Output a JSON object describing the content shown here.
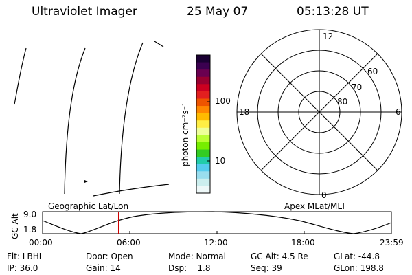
{
  "header": {
    "instrument": "Ultraviolet Imager",
    "date": "25 May 07",
    "time": "05:13:28 UT"
  },
  "colorbar": {
    "unit_label": "photon cm⁻²s⁻¹",
    "tick_100": "100",
    "tick_10": "10",
    "colors": [
      "#1a0033",
      "#3b0050",
      "#6a0050",
      "#990030",
      "#cc0020",
      "#e21f1f",
      "#ee5500",
      "#ff8800",
      "#ffbb00",
      "#ffee44",
      "#eeff99",
      "#bbff33",
      "#77ee00",
      "#33cc22",
      "#22ccaa",
      "#55ccee",
      "#99ddee",
      "#cceeee",
      "#eef8f8"
    ]
  },
  "polar": {
    "mlt_12": "12",
    "mlt_18": "18",
    "mlt_6": "6",
    "mlt_0": "0",
    "lat_60": "60",
    "lat_70": "70",
    "lat_80": "80"
  },
  "projection_labels": {
    "left": "Geographic Lat/Lon",
    "right": "Apex MLat/MLT"
  },
  "altitude_plot": {
    "ylabel": "GC Alt",
    "ytick_top": "9.0",
    "ytick_bottom": "1.8",
    "xticks": [
      "00:00",
      "06:00",
      "12:00",
      "18:00",
      "23:59"
    ],
    "current_time_marker_color": "#cc0000"
  },
  "info": {
    "row1": {
      "filter": "Flt: LBHL",
      "door": "Door: Open",
      "mode": "Mode: Normal",
      "gc_alt": "GC Alt: 4.5 Re",
      "glat": "GLat: -44.8"
    },
    "row2": {
      "ip": "IP: 36.0",
      "gain": "Gain: 14",
      "dsp": "Dsp:    1.8",
      "seq": "Seq: 39",
      "glon": "GLon: 198.8"
    }
  }
}
